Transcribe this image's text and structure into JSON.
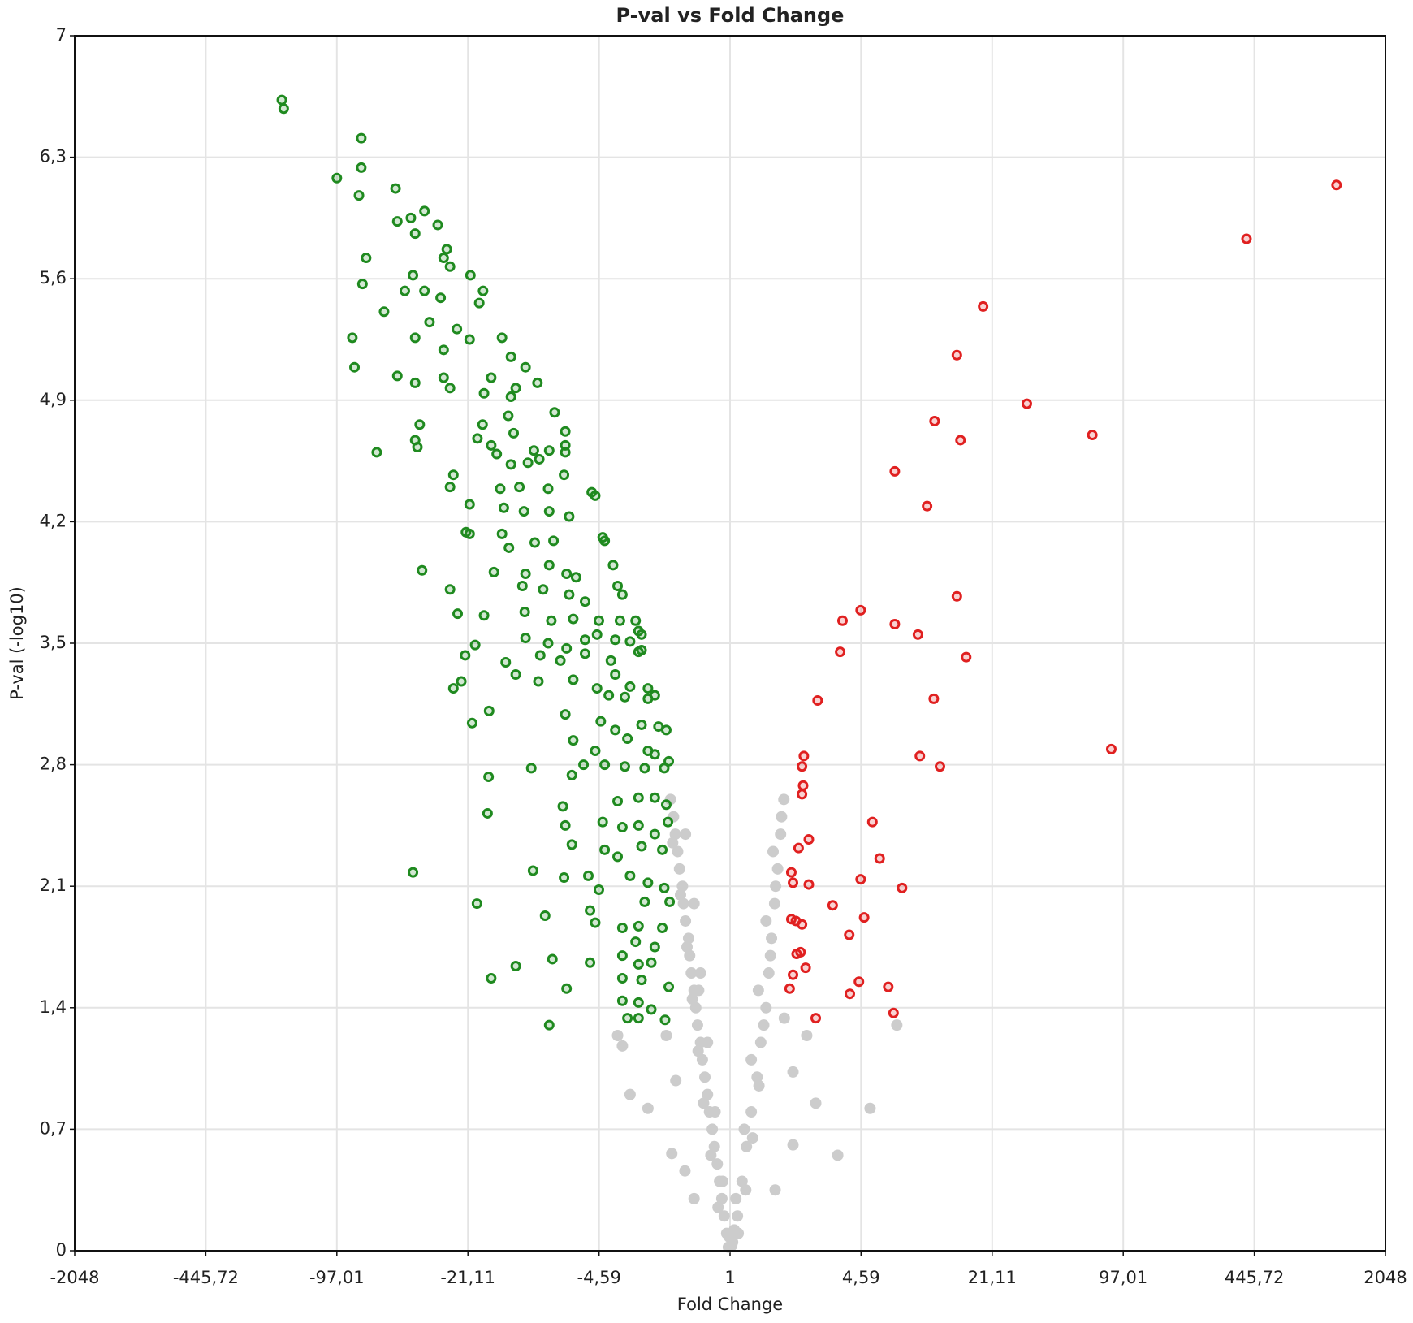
{
  "chart_data": {
    "type": "scatter",
    "title": "P-val vs Fold Change",
    "x_label": "Fold Change",
    "y_label": "P-val (-log10)",
    "xscale": "signed-log",
    "grid": true,
    "xlim": [
      -2048,
      2048
    ],
    "xticks": [
      -2048,
      {
        "value": -445.72,
        "label": "-445,72"
      },
      {
        "value": -97.01,
        "label": "-97,01"
      },
      {
        "value": -21.11,
        "label": "-21,11"
      },
      {
        "value": -4.59,
        "label": "-4,59"
      },
      1,
      {
        "value": 4.59,
        "label": "4,59"
      },
      {
        "value": 21.11,
        "label": "21,11"
      },
      {
        "value": 97.01,
        "label": "97,01"
      },
      {
        "value": 445.72,
        "label": "445,72"
      },
      2048
    ],
    "ylim": [
      0,
      7
    ],
    "yticks": [
      0,
      {
        "value": 0.7,
        "label": "0,7"
      },
      {
        "value": 1.4,
        "label": "1,4"
      },
      {
        "value": 2.1,
        "label": "2,1"
      },
      {
        "value": 2.8,
        "label": "2,8"
      },
      {
        "value": 3.5,
        "label": "3,5"
      },
      {
        "value": 4.2,
        "label": "4,2"
      },
      {
        "value": 4.9,
        "label": "4,9"
      },
      {
        "value": 5.6,
        "label": "5,6"
      },
      {
        "value": 6.3,
        "label": "6,3"
      },
      7
    ],
    "series": [
      {
        "color": "#cccccc",
        "marker": "filled",
        "x": [
          -2.0,
          -1.93,
          -1.89,
          -1.84,
          -1.8,
          -1.74,
          -1.72,
          -1.68,
          -1.62,
          -1.6,
          -1.57,
          -1.52,
          -1.49,
          -1.46,
          -1.41,
          -1.38,
          -1.34,
          -1.3,
          -1.27,
          -1.23,
          -1.2,
          -1.16,
          -1.13,
          -1.1,
          -1.07,
          -1.04,
          -1.68,
          -1.52,
          -1.41,
          -1.3,
          -1.19,
          -1.09,
          -3.5,
          -3.2,
          -2.6,
          -2.1,
          -1.97,
          -1.69,
          -3.7,
          -1.88,
          -1.52,
          -1.44,
          1.87,
          1.8,
          1.74,
          1.68,
          1.62,
          1.57,
          1.52,
          1.43,
          1.37,
          1.28,
          1.21,
          1.15,
          1.09,
          1.03,
          1.65,
          1.52,
          1.39,
          1.28,
          1.18,
          1.07,
          2.71,
          3.5,
          5.1,
          2.08,
          2.44,
          1.88,
          6.96,
          2.08,
          1.69,
          -1.02,
          1.02,
          -1.01,
          1.05,
          -1.95,
          -1.78,
          -1.65,
          -1.55,
          -1.45,
          -1.36,
          -1.25,
          -1.15,
          1.82,
          1.7,
          1.6,
          1.48,
          1.4,
          1.3,
          1.2,
          1.1
        ],
        "values": [
          2.6,
          2.5,
          2.4,
          2.3,
          2.2,
          2.1,
          2.0,
          1.9,
          1.8,
          1.7,
          1.6,
          1.5,
          1.4,
          1.3,
          1.2,
          1.1,
          1.0,
          0.9,
          0.8,
          0.7,
          0.6,
          0.5,
          0.4,
          0.3,
          0.2,
          0.1,
          2.4,
          2.0,
          1.6,
          1.2,
          0.8,
          0.4,
          1.18,
          0.9,
          0.82,
          1.24,
          0.56,
          0.46,
          1.24,
          0.98,
          0.3,
          1.5,
          2.6,
          2.4,
          2.2,
          2.0,
          1.8,
          1.6,
          1.4,
          1.2,
          1.0,
          0.8,
          0.6,
          0.4,
          0.2,
          0.05,
          2.3,
          1.9,
          1.5,
          1.1,
          0.7,
          0.3,
          0.85,
          0.55,
          0.82,
          0.61,
          1.24,
          1.34,
          1.3,
          1.03,
          0.35,
          0.02,
          0.03,
          0.08,
          0.12,
          2.35,
          2.05,
          1.75,
          1.45,
          1.15,
          0.85,
          0.55,
          0.25,
          2.5,
          2.1,
          1.7,
          1.3,
          0.95,
          0.65,
          0.35,
          0.1
        ]
      },
      {
        "color": "#1f8a1f",
        "marker": "ring",
        "x": [
          -184,
          -180,
          -73,
          -73,
          -97,
          -75,
          -49,
          -48,
          -41,
          -35,
          -30,
          -39,
          -27,
          -28,
          -69,
          -26,
          -40,
          -20.5,
          -72,
          -44,
          -35,
          -29,
          -17.7,
          -18.5,
          -56,
          -33,
          -24,
          -81,
          -39,
          -28,
          -20.7,
          -14.2,
          -79,
          -48,
          -39,
          -28,
          -26,
          -12.8,
          -10.8,
          -16.1,
          -17.5,
          -12.1,
          -9.4,
          -12.8,
          -7.7,
          -37,
          -17.8,
          -13.2,
          -6.8,
          -39,
          -38,
          -61,
          -18.9,
          -16.1,
          -15.1,
          -12.4,
          -9.8,
          -8.2,
          -6.8,
          -12.8,
          -10.5,
          -9.2,
          -6.8,
          -25,
          -26,
          -14.5,
          -11.6,
          -8.3,
          -6.9,
          -5.0,
          -4.8,
          -20.7,
          -13.9,
          -11,
          -8.2,
          -6.5,
          -21.6,
          -20.7,
          -14.2,
          -13.1,
          -9.7,
          -7.8,
          -4.4,
          -4.3,
          -36,
          -15.6,
          -10.8,
          -8.2,
          -6.7,
          -6.0,
          -3.9,
          -26,
          -11.2,
          -8.8,
          -6.5,
          -5.4,
          -3.7,
          -3.5,
          -23.8,
          -17.5,
          -10.9,
          -8.0,
          -6.2,
          -4.6,
          -3.6,
          -3.0,
          -2.9,
          -10.8,
          -8.3,
          -6.7,
          -5.4,
          -4.7,
          -3.8,
          -3.2,
          -2.8,
          -21.8,
          -19.4,
          -13.6,
          -9.1,
          -7.2,
          -5.4,
          -4.0,
          -2.9,
          -2.8,
          -12.1,
          -9.3,
          -6.2,
          -4.7,
          -3.8,
          -3.2,
          -2.6,
          -25,
          -22.8,
          -4.1,
          -3.4,
          -2.6,
          -2.4,
          -16.5,
          -20.1,
          -6.8,
          -4.5,
          -3.8,
          -2.8,
          -2.3,
          -2.1,
          -6.2,
          -4.8,
          -3.3,
          -2.6,
          -2.4,
          -2.04,
          -10.1,
          -6.3,
          -5.5,
          -4.3,
          -3.4,
          -2.7,
          -2.15,
          -16.6,
          -16.8,
          -7.0,
          -3.7,
          -2.9,
          -2.4,
          -2.1,
          -6.8,
          -6.3,
          -4.4,
          -3.5,
          -2.9,
          -2.4,
          -2.06,
          -4.3,
          -3.7,
          -2.8,
          -2.2,
          -9.9,
          -40,
          -6.9,
          -5.2,
          -3.2,
          -2.6,
          -2.15,
          -4.6,
          -19.0,
          -2.7,
          -2.02,
          -8.6,
          -5.1,
          -4.8,
          -3.5,
          -2.9,
          -2.2,
          -3.0,
          -2.4,
          -7.9,
          -5.1,
          -3.5,
          -2.9,
          -2.5,
          -12.1,
          -16.1,
          -3.5,
          -2.8,
          -2.04,
          -6.7,
          -3.5,
          -2.9,
          -2.5,
          -2.13,
          -8.2,
          -3.3,
          -2.9
        ],
        "values": [
          6.63,
          6.58,
          6.41,
          6.24,
          6.18,
          6.08,
          6.12,
          5.93,
          5.95,
          5.99,
          5.91,
          5.86,
          5.77,
          5.72,
          5.72,
          5.67,
          5.62,
          5.62,
          5.57,
          5.53,
          5.53,
          5.49,
          5.53,
          5.46,
          5.41,
          5.35,
          5.31,
          5.26,
          5.26,
          5.19,
          5.25,
          5.26,
          5.09,
          5.04,
          5.0,
          5.03,
          4.97,
          5.15,
          5.09,
          5.03,
          4.94,
          4.97,
          5.0,
          4.92,
          4.83,
          4.76,
          4.76,
          4.81,
          4.72,
          4.67,
          4.63,
          4.6,
          4.68,
          4.64,
          4.59,
          4.71,
          4.61,
          4.61,
          4.64,
          4.53,
          4.54,
          4.56,
          4.6,
          4.47,
          4.4,
          4.39,
          4.4,
          4.39,
          4.47,
          4.37,
          4.35,
          4.3,
          4.28,
          4.26,
          4.26,
          4.23,
          4.14,
          4.13,
          4.13,
          4.05,
          4.08,
          4.09,
          4.11,
          4.09,
          3.92,
          3.91,
          3.9,
          3.95,
          3.9,
          3.88,
          3.95,
          3.81,
          3.83,
          3.81,
          3.78,
          3.74,
          3.83,
          3.78,
          3.67,
          3.66,
          3.68,
          3.63,
          3.64,
          3.63,
          3.63,
          3.63,
          3.57,
          3.53,
          3.5,
          3.47,
          3.52,
          3.55,
          3.52,
          3.51,
          3.55,
          3.43,
          3.49,
          3.39,
          3.43,
          3.4,
          3.44,
          3.4,
          3.45,
          3.46,
          3.32,
          3.28,
          3.29,
          3.24,
          3.32,
          3.25,
          3.24,
          3.24,
          3.28,
          3.2,
          3.19,
          3.18,
          3.2,
          3.11,
          3.04,
          3.09,
          3.05,
          3.0,
          3.03,
          3.02,
          3.0,
          2.94,
          2.88,
          2.95,
          2.88,
          2.86,
          2.82,
          2.78,
          2.74,
          2.8,
          2.8,
          2.79,
          2.78,
          2.78,
          2.73,
          2.52,
          2.56,
          2.59,
          2.61,
          2.61,
          2.57,
          2.45,
          2.34,
          2.47,
          2.44,
          2.45,
          2.4,
          2.47,
          2.31,
          2.27,
          2.33,
          2.31,
          2.19,
          2.18,
          2.15,
          2.16,
          2.16,
          2.12,
          2.09,
          2.08,
          2.0,
          2.01,
          2.01,
          1.93,
          1.96,
          1.89,
          1.86,
          1.87,
          1.86,
          1.78,
          1.75,
          1.68,
          1.66,
          1.7,
          1.65,
          1.66,
          1.64,
          1.57,
          1.57,
          1.56,
          1.52,
          1.51,
          1.44,
          1.43,
          1.39,
          1.33,
          1.3,
          1.34,
          1.34
        ]
      },
      {
        "color": "#e02020",
        "marker": "ring",
        "x": [
          1160,
          407,
          19.0,
          14.0,
          31.6,
          10.8,
          67.7,
          14.6,
          6.8,
          9.9,
          14.0,
          4.57,
          3.7,
          6.8,
          8.9,
          3.6,
          15.6,
          2.77,
          10.7,
          84.4,
          9.1,
          11.5,
          2.36,
          2.31,
          2.34,
          2.31,
          5.24,
          2.5,
          2.22,
          5.7,
          2.04,
          2.08,
          2.5,
          4.57,
          7.4,
          3.3,
          4.76,
          2.04,
          2.15,
          2.31,
          4.0,
          2.17,
          2.27,
          2.41,
          2.08,
          4.48,
          6.3,
          2.0,
          4.03,
          6.7,
          2.71
        ],
        "values": [
          6.14,
          5.83,
          5.44,
          5.16,
          4.88,
          4.78,
          4.7,
          4.67,
          4.49,
          4.29,
          3.77,
          3.69,
          3.63,
          3.61,
          3.55,
          3.45,
          3.42,
          3.17,
          3.18,
          2.89,
          2.85,
          2.79,
          2.85,
          2.79,
          2.68,
          2.63,
          2.47,
          2.37,
          2.32,
          2.26,
          2.18,
          2.12,
          2.11,
          2.14,
          2.09,
          1.99,
          1.92,
          1.91,
          1.9,
          1.88,
          1.82,
          1.71,
          1.72,
          1.63,
          1.59,
          1.55,
          1.52,
          1.51,
          1.48,
          1.37,
          1.34
        ]
      }
    ]
  }
}
